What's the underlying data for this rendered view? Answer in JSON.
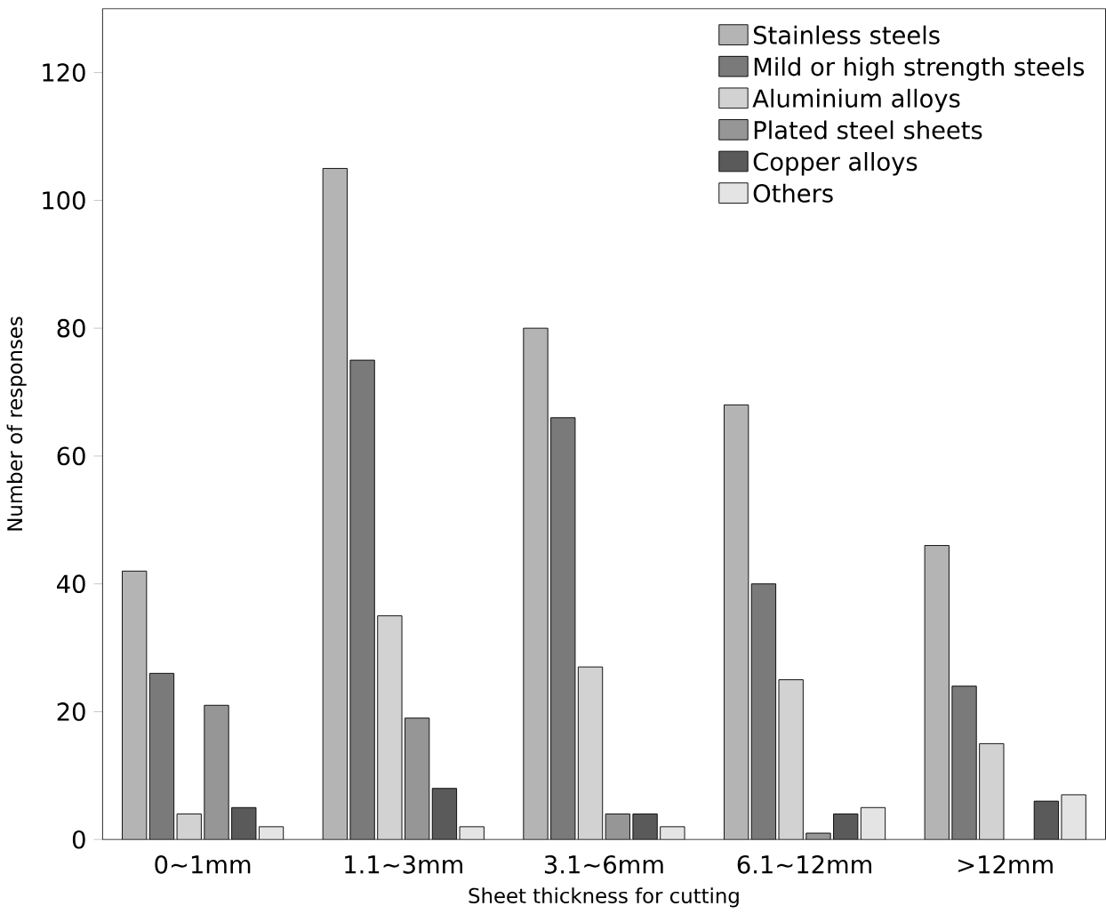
{
  "chart_data": {
    "type": "bar",
    "xlabel": "Sheet thickness for cutting",
    "ylabel": "Number of responses",
    "categories": [
      "0∼1mm",
      "1.1∼3mm",
      "3.1∼6mm",
      "6.1∼12mm",
      ">12mm"
    ],
    "ylim": [
      0,
      130
    ],
    "yticks": [
      0,
      20,
      40,
      60,
      80,
      100,
      120
    ],
    "legend": "top right",
    "grid": false,
    "series": [
      {
        "name": "Stainless steels",
        "color": "#b4b4b4",
        "values": [
          42,
          105,
          80,
          68,
          46
        ]
      },
      {
        "name": "Mild or high strength steels",
        "color": "#7a7a7a",
        "values": [
          26,
          75,
          66,
          40,
          24
        ]
      },
      {
        "name": "Aluminium alloys",
        "color": "#d2d2d2",
        "values": [
          4,
          35,
          27,
          25,
          15
        ]
      },
      {
        "name": "Plated steel sheets",
        "color": "#969696",
        "values": [
          21,
          19,
          4,
          1,
          null
        ]
      },
      {
        "name": "Copper alloys",
        "color": "#5a5a5a",
        "values": [
          5,
          8,
          4,
          4,
          6
        ]
      },
      {
        "name": "Others",
        "color": "#e4e4e4",
        "values": [
          2,
          2,
          2,
          5,
          7
        ]
      }
    ]
  }
}
